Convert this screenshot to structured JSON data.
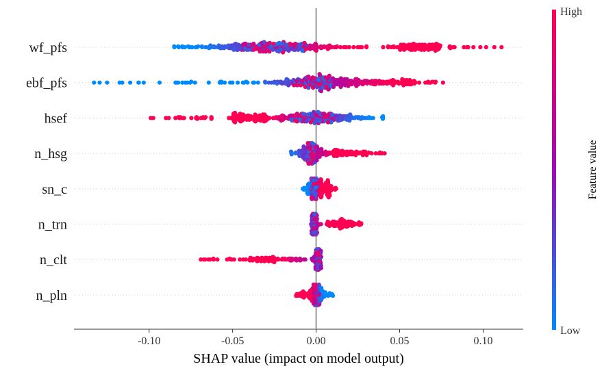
{
  "chart_data": {
    "type": "scatter",
    "subtype": "shap-beeswarm",
    "title": "",
    "xlabel": "SHAP value (impact on model output)",
    "xlim": [
      -0.145,
      0.124
    ],
    "xticks": [
      -0.1,
      -0.05,
      0.0,
      0.05,
      0.1
    ],
    "xtick_labels": [
      "-0.10",
      "-0.05",
      "0.00",
      "0.05",
      "0.10"
    ],
    "zero_line": 0.0,
    "colorbar": {
      "title": "Feature value",
      "high_label": "High",
      "low_label": "Low",
      "low_color": "#008afb",
      "mid_color": "#9d0bb3",
      "high_color": "#ff0052"
    },
    "features": [
      {
        "name": "wf_pfs",
        "min": -0.085,
        "max": 0.111,
        "core_low": -0.045,
        "core_high": -0.005,
        "peak": -0.027,
        "low_side": "left",
        "tail": [
          0.05,
          0.075
        ],
        "n": 520
      },
      {
        "name": "ebf_pfs",
        "min": -0.133,
        "max": 0.076,
        "core_low": -0.015,
        "core_high": 0.01,
        "peak": 0.002,
        "low_side": "left",
        "tail": [
          0.02,
          0.06
        ],
        "n": 470
      },
      {
        "name": "hsef",
        "min": -0.099,
        "max": 0.04,
        "core_low": -0.015,
        "core_high": 0.012,
        "peak": 0.0,
        "low_side": "right",
        "tail": [
          -0.05,
          -0.03
        ],
        "n": 420
      },
      {
        "name": "n_hsg",
        "min": -0.015,
        "max": 0.041,
        "core_low": -0.006,
        "core_high": 0.0,
        "peak": -0.003,
        "low_side": "left",
        "tail": [
          0.004,
          0.03
        ],
        "n": 300
      },
      {
        "name": "sn_c",
        "min": -0.008,
        "max": 0.012,
        "core_low": -0.003,
        "core_high": 0.001,
        "peak": -0.001,
        "low_side": "left",
        "tail": [
          0.002,
          0.009
        ],
        "n": 260
      },
      {
        "name": "n_trn",
        "min": -0.003,
        "max": 0.027,
        "core_low": -0.002,
        "core_high": 0.0,
        "peak": -0.001,
        "low_side": "left",
        "tail": [
          0.007,
          0.024
        ],
        "n": 240
      },
      {
        "name": "n_clt",
        "min": -0.069,
        "max": 0.003,
        "core_low": 0.0,
        "core_high": 0.002,
        "peak": 0.001,
        "low_side": "right",
        "tail": [
          -0.04,
          -0.01
        ],
        "n": 240
      },
      {
        "name": "n_pln",
        "min": -0.012,
        "max": 0.01,
        "core_low": -0.001,
        "core_high": 0.002,
        "peak": 0.0,
        "low_side": "right",
        "tail": [
          -0.012,
          0.006
        ],
        "n": 240
      }
    ]
  }
}
